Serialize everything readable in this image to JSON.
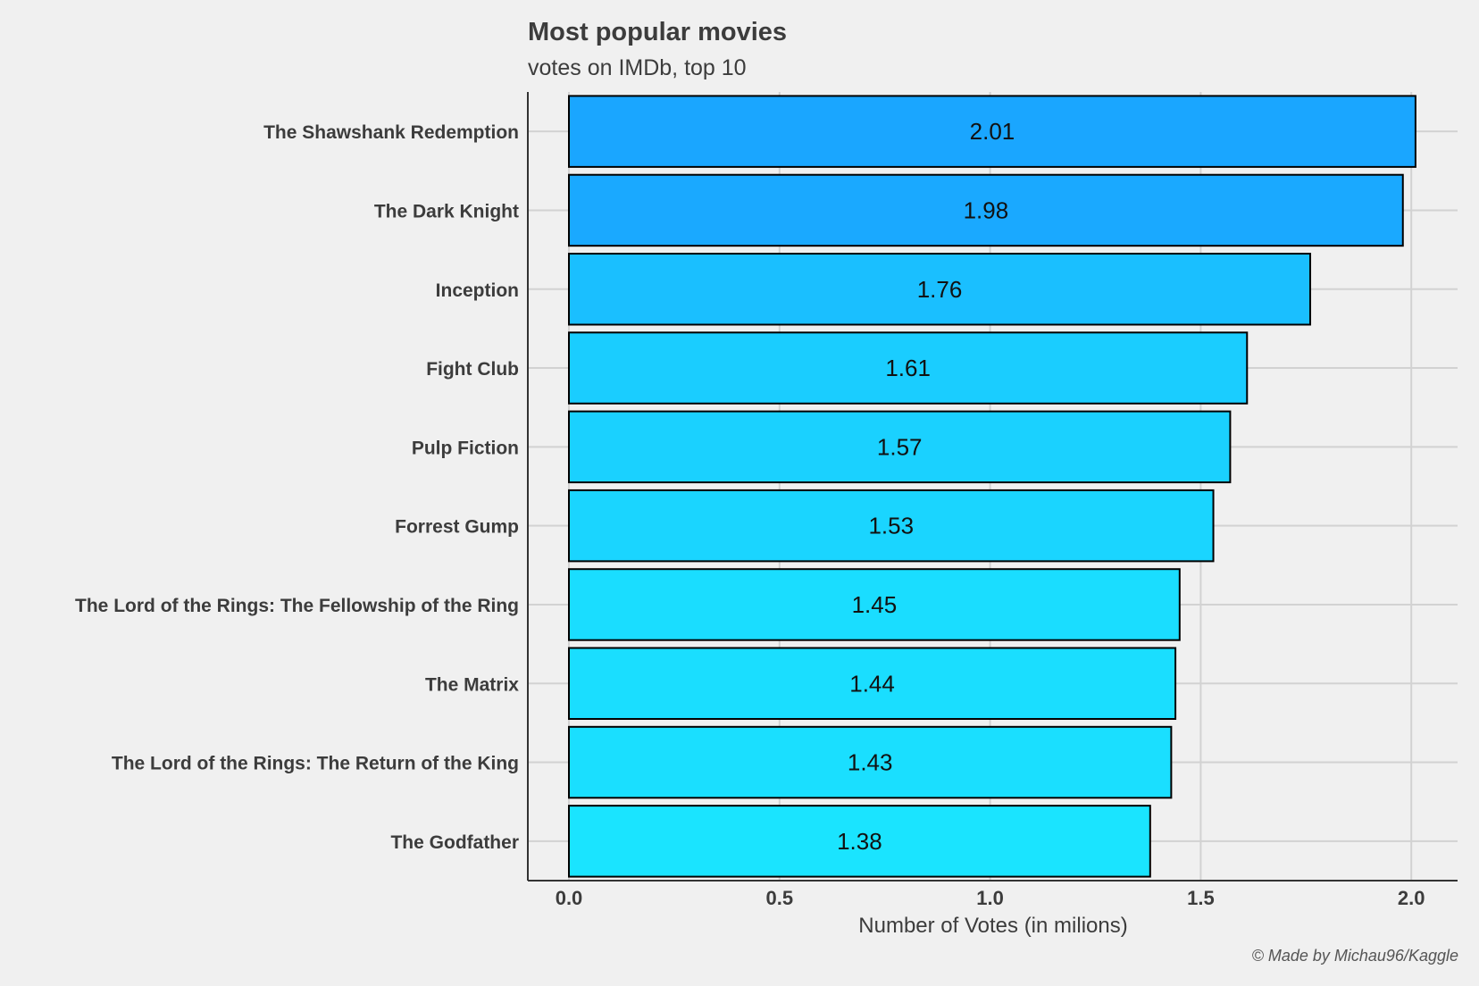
{
  "chart_data": {
    "type": "bar",
    "orientation": "horizontal",
    "title": "Most popular movies",
    "subtitle": "votes on IMDb, top 10",
    "xlabel": "Number of Votes (in milions)",
    "ylabel": "",
    "caption": "© Made by Michau96/Kaggle",
    "categories": [
      "The Shawshank Redemption",
      "The Dark Knight",
      "Inception",
      "Fight Club",
      "Pulp Fiction",
      "Forrest Gump",
      "The Lord of the Rings: The Fellowship of the Ring",
      "The Matrix",
      "The Lord of the Rings: The Return of the King",
      "The Godfather"
    ],
    "values": [
      2.01,
      1.98,
      1.76,
      1.61,
      1.57,
      1.53,
      1.45,
      1.44,
      1.43,
      1.38
    ],
    "data_labels": [
      "2.01",
      "1.98",
      "1.76",
      "1.61",
      "1.57",
      "1.53",
      "1.45",
      "1.44",
      "1.43",
      "1.38"
    ],
    "x_ticks": [
      "0.0",
      "0.5",
      "1.0",
      "1.5",
      "2.0"
    ],
    "xlim": [
      -0.1,
      2.12
    ],
    "grid": true,
    "legend": "none",
    "colors": {
      "background": "#f0f0f0",
      "grid": "#d2d2d2",
      "bar_high": "#1aa6ff",
      "bar_low": "#1ae4ff",
      "bar_stroke": "#000000",
      "text": "#3c3c3c"
    }
  }
}
